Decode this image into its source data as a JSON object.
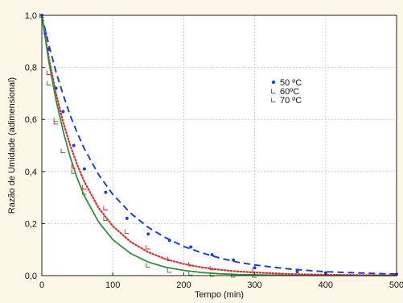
{
  "chart_data": {
    "type": "scatter",
    "xlabel": "Tempo (min)",
    "ylabel": "Razão de Umidade (adimensional)",
    "xlim": [
      0,
      500
    ],
    "ylim": [
      0,
      1.0
    ],
    "x_ticks": [
      "0",
      "100",
      "200",
      "300",
      "400",
      "500"
    ],
    "y_ticks": [
      "0,0",
      "0,2",
      "0,4",
      "0,6",
      "0,8",
      "1,0"
    ],
    "grid": true,
    "legend_position": "upper-right (inside plot)",
    "series": [
      {
        "name": "50 ºC",
        "color": "#1f3fd8",
        "marker": "dot",
        "line_style": "dashed",
        "points": [
          [
            0,
            1.0
          ],
          [
            5,
            0.93
          ],
          [
            10,
            0.87
          ],
          [
            20,
            0.72
          ],
          [
            30,
            0.63
          ],
          [
            45,
            0.5
          ],
          [
            60,
            0.41
          ],
          [
            90,
            0.32
          ],
          [
            120,
            0.22
          ],
          [
            150,
            0.16
          ],
          [
            180,
            0.135
          ],
          [
            210,
            0.11
          ],
          [
            240,
            0.08
          ],
          [
            270,
            0.06
          ],
          [
            300,
            0.03
          ],
          [
            360,
            0.015
          ],
          [
            400,
            0.01
          ],
          [
            500,
            0.005
          ]
        ],
        "fit": [
          [
            0,
            1.0
          ],
          [
            10,
            0.885
          ],
          [
            20,
            0.783
          ],
          [
            30,
            0.695
          ],
          [
            40,
            0.615
          ],
          [
            50,
            0.548
          ],
          [
            60,
            0.487
          ],
          [
            80,
            0.388
          ],
          [
            100,
            0.312
          ],
          [
            125,
            0.24
          ],
          [
            150,
            0.185
          ],
          [
            175,
            0.145
          ],
          [
            200,
            0.112
          ],
          [
            225,
            0.088
          ],
          [
            250,
            0.068
          ],
          [
            275,
            0.052
          ],
          [
            300,
            0.041
          ],
          [
            350,
            0.025
          ],
          [
            400,
            0.015
          ],
          [
            450,
            0.01
          ],
          [
            500,
            0.006
          ]
        ]
      },
      {
        "name": "60ºC",
        "color": "#d93030",
        "marker": "tick",
        "line_style": "dotted",
        "points": [
          [
            0,
            1.0
          ],
          [
            10,
            0.78
          ],
          [
            20,
            0.59
          ],
          [
            30,
            0.48
          ],
          [
            45,
            0.42
          ],
          [
            60,
            0.34
          ],
          [
            90,
            0.26
          ],
          [
            120,
            0.17
          ],
          [
            150,
            0.11
          ],
          [
            180,
            0.065
          ],
          [
            210,
            0.045
          ],
          [
            240,
            0.03
          ],
          [
            300,
            0.02
          ]
        ],
        "fit": [
          [
            0,
            1.0
          ],
          [
            10,
            0.835
          ],
          [
            20,
            0.7
          ],
          [
            30,
            0.59
          ],
          [
            40,
            0.5
          ],
          [
            50,
            0.425
          ],
          [
            60,
            0.36
          ],
          [
            80,
            0.26
          ],
          [
            100,
            0.19
          ],
          [
            125,
            0.13
          ],
          [
            150,
            0.09
          ],
          [
            175,
            0.063
          ],
          [
            200,
            0.045
          ],
          [
            225,
            0.032
          ],
          [
            250,
            0.023
          ],
          [
            275,
            0.016
          ],
          [
            300,
            0.012
          ],
          [
            350,
            0.006
          ],
          [
            400,
            0.003
          ],
          [
            450,
            0.002
          ],
          [
            500,
            0.001
          ]
        ]
      },
      {
        "name": "70 ºC",
        "color": "#2f8f3a",
        "marker": "tick",
        "line_style": "solid",
        "points": [
          [
            0,
            1.0
          ],
          [
            10,
            0.74
          ],
          [
            20,
            0.6
          ],
          [
            30,
            0.48
          ],
          [
            45,
            0.4
          ],
          [
            60,
            0.32
          ],
          [
            90,
            0.22
          ],
          [
            150,
            0.04
          ],
          [
            180,
            0.02
          ],
          [
            210,
            0.01
          ],
          [
            240,
            0.005
          ],
          [
            270,
            0.002
          ],
          [
            300,
            0.001
          ]
        ],
        "fit": [
          [
            0,
            1.0
          ],
          [
            10,
            0.82
          ],
          [
            20,
            0.675
          ],
          [
            30,
            0.555
          ],
          [
            40,
            0.455
          ],
          [
            50,
            0.373
          ],
          [
            60,
            0.306
          ],
          [
            80,
            0.206
          ],
          [
            100,
            0.138
          ],
          [
            125,
            0.085
          ],
          [
            150,
            0.052
          ],
          [
            175,
            0.032
          ],
          [
            200,
            0.02
          ],
          [
            225,
            0.012
          ],
          [
            250,
            0.007
          ],
          [
            275,
            0.004
          ],
          [
            300,
            0.003
          ],
          [
            350,
            0.001
          ],
          [
            400,
            0.0005
          ],
          [
            450,
            0.0002
          ],
          [
            500,
            0.0001
          ]
        ]
      }
    ]
  }
}
